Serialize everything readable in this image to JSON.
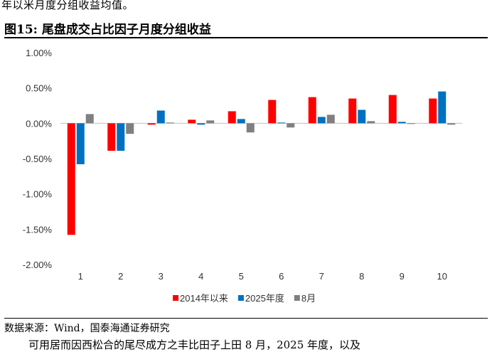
{
  "header": {
    "intro_text": "年以米月度分组收益均值。",
    "figure_title": "图15:  尾盘成交占比因子月度分组收益"
  },
  "footer": {
    "source": "数据来源：Wind，国泰海通证券研究",
    "continuation_text": "可用居而因西松合的尾尽成方之丰比田子上田 8 月，2025 年度，以及"
  },
  "chart_data": {
    "type": "bar",
    "title": "",
    "xlabel": "",
    "ylabel": "",
    "categories": [
      "1",
      "2",
      "3",
      "4",
      "5",
      "6",
      "7",
      "8",
      "9",
      "10"
    ],
    "ylim": [
      -0.02,
      0.01
    ],
    "yticks": [
      0.01,
      0.005,
      0.0,
      -0.005,
      -0.01,
      -0.015,
      -0.02
    ],
    "ytick_labels": [
      "1.00%",
      "0.50%",
      "0.00%",
      "-0.50%",
      "-1.00%",
      "-1.50%",
      "-2.00%"
    ],
    "grid": false,
    "legend_position": "bottom-center",
    "series": [
      {
        "name": "2014年以来",
        "color": "#ff0000",
        "values": [
          -0.0158,
          -0.0039,
          -0.0002,
          0.0005,
          0.0017,
          0.0033,
          0.0037,
          0.0035,
          0.004,
          0.0035
        ]
      },
      {
        "name": "2025年度",
        "color": "#0070c0",
        "values": [
          -0.0058,
          -0.0039,
          0.0018,
          -0.0002,
          0.0006,
          0.0001,
          0.0009,
          0.0019,
          0.0002,
          0.0045
        ]
      },
      {
        "name": "8月",
        "color": "#7f7f7f",
        "values": [
          0.0013,
          -0.0015,
          0.0001,
          0.0004,
          -0.0013,
          -0.0006,
          0.0012,
          0.0003,
          -0.0001,
          -0.0002
        ]
      }
    ]
  }
}
